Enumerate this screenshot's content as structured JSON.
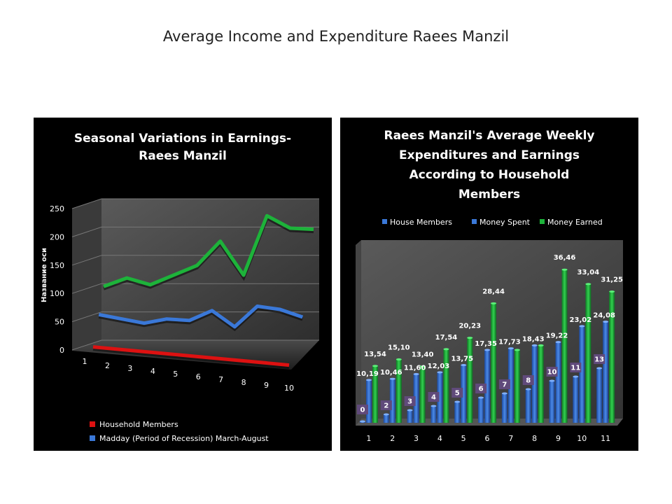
{
  "slide_title": "Average Income and Expenditure Raees Manzil",
  "colors": {
    "red": "#dd1111",
    "blue": "#3a78d8",
    "green": "#1db33a",
    "label_box": "#604a7b"
  },
  "chart_data": [
    {
      "type": "line",
      "title_lines": [
        "Seasonal Variations in Earnings-",
        "Raees Manzil"
      ],
      "ylabel": "Название оси",
      "yticks": [
        "0",
        "50",
        "100",
        "150",
        "200",
        "250"
      ],
      "ylim": [
        0,
        250
      ],
      "x": [
        "1",
        "2",
        "3",
        "4",
        "5",
        "6",
        "7",
        "8",
        "9",
        "10"
      ],
      "series": [
        {
          "name": "Household  Members",
          "color": "red",
          "values": [
            3,
            3,
            3,
            3,
            3,
            3,
            3,
            3,
            3,
            3
          ]
        },
        {
          "name": "Madday (Period of Recession) March-August",
          "color": "blue",
          "values": [
            52,
            46,
            40,
            49,
            48,
            67,
            40,
            78,
            74,
            62
          ]
        },
        {
          "name": "",
          "color": "green",
          "values": [
            95,
            110,
            98,
            115,
            132,
            175,
            115,
            220,
            198,
            196
          ]
        }
      ],
      "legend_position": "bottom"
    },
    {
      "type": "bar",
      "title_lines": [
        "Raees Manzil's  Average Weekly",
        "Expenditures and Earnings",
        "According to Household",
        "Members"
      ],
      "categories": [
        "1",
        "2",
        "3",
        "4",
        "5",
        "6",
        "7",
        "8",
        "9",
        "10",
        "11"
      ],
      "series": [
        {
          "name": "House Members",
          "color": "blue",
          "values": [
            0,
            2,
            3,
            4,
            5,
            6,
            7,
            8,
            10,
            11,
            13
          ],
          "labels": [
            "0",
            "2",
            "3",
            "4",
            "5",
            "6",
            "7",
            "8",
            "10",
            "11",
            "13"
          ]
        },
        {
          "name": "Money Spent",
          "color": "blue",
          "values": [
            10.19,
            10.46,
            11.6,
            12.03,
            13.75,
            17.35,
            17.73,
            18.43,
            19.22,
            23.02,
            24.08
          ],
          "labels": [
            "10,19",
            "10,46",
            "11,60",
            "12,03",
            "13,75",
            "17,35",
            "17,73",
            "18,43",
            "19,22",
            "23,02",
            "24,08"
          ]
        },
        {
          "name": "Money Earned",
          "color": "green",
          "values": [
            13.54,
            15.1,
            13.4,
            17.54,
            20.23,
            28.44,
            17.35,
            18.43,
            36.46,
            33.04,
            31.25
          ],
          "labels": [
            "13,54",
            "15,10",
            "13,40",
            "17,54",
            "20,23",
            "28,44",
            "",
            "",
            "36,46",
            "33,04",
            "31,25"
          ]
        }
      ],
      "legend_position": "top"
    }
  ]
}
